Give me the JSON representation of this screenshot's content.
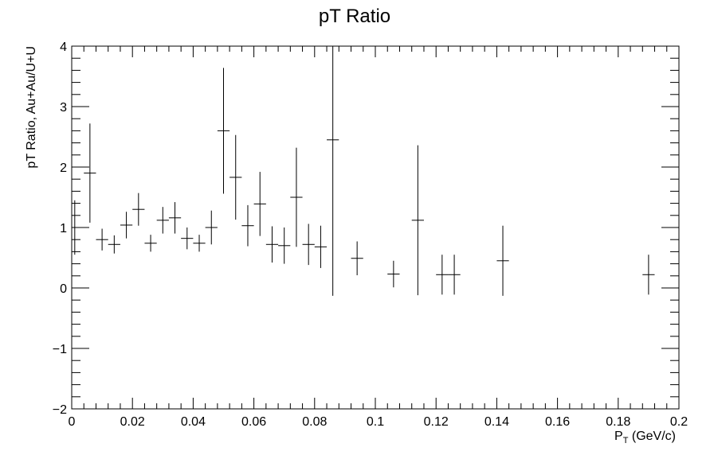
{
  "chart_data": {
    "type": "scatter",
    "title": "pT Ratio",
    "xlabel_main": "P",
    "xlabel_sub": "T",
    "xlabel_rest": " (GeV/c)",
    "ylabel": "pT Ratio, Au+Au/U+U",
    "xlim": [
      0,
      0.2
    ],
    "ylim": [
      -2,
      4
    ],
    "x_ticks": [
      0,
      0.02,
      0.04,
      0.06,
      0.08,
      0.1,
      0.12,
      0.14,
      0.16,
      0.18,
      0.2
    ],
    "x_tick_labels": [
      "0",
      "0.02",
      "0.04",
      "0.06",
      "0.08",
      "0.1",
      "0.12",
      "0.14",
      "0.16",
      "0.18",
      "0.2"
    ],
    "y_ticks": [
      -2,
      -1,
      0,
      1,
      2,
      3,
      4
    ],
    "y_tick_labels": [
      "−2",
      "−1",
      "0",
      "1",
      "2",
      "3",
      "4"
    ],
    "bin_width": 0.004,
    "grid": false,
    "legend": "none",
    "points": [
      {
        "x": 0.001,
        "y": 1.0,
        "err": 0.45
      },
      {
        "x": 0.006,
        "y": 1.9,
        "err": 0.82
      },
      {
        "x": 0.01,
        "y": 0.8,
        "err": 0.18
      },
      {
        "x": 0.014,
        "y": 0.72,
        "err": 0.15
      },
      {
        "x": 0.018,
        "y": 1.04,
        "err": 0.22
      },
      {
        "x": 0.022,
        "y": 1.3,
        "err": 0.27
      },
      {
        "x": 0.026,
        "y": 0.74,
        "err": 0.14
      },
      {
        "x": 0.03,
        "y": 1.12,
        "err": 0.22
      },
      {
        "x": 0.034,
        "y": 1.16,
        "err": 0.26
      },
      {
        "x": 0.038,
        "y": 0.82,
        "err": 0.18
      },
      {
        "x": 0.042,
        "y": 0.74,
        "err": 0.14
      },
      {
        "x": 0.046,
        "y": 1.0,
        "err": 0.28
      },
      {
        "x": 0.05,
        "y": 2.6,
        "err": 1.04
      },
      {
        "x": 0.054,
        "y": 1.83,
        "err": 0.7
      },
      {
        "x": 0.058,
        "y": 1.03,
        "err": 0.34
      },
      {
        "x": 0.062,
        "y": 1.39,
        "err": 0.53
      },
      {
        "x": 0.066,
        "y": 0.72,
        "err": 0.3
      },
      {
        "x": 0.07,
        "y": 0.7,
        "err": 0.3
      },
      {
        "x": 0.074,
        "y": 1.5,
        "err": 0.82
      },
      {
        "x": 0.078,
        "y": 0.72,
        "err": 0.34
      },
      {
        "x": 0.082,
        "y": 0.68,
        "err": 0.35
      },
      {
        "x": 0.086,
        "y": 2.45,
        "err": 2.58
      },
      {
        "x": 0.094,
        "y": 0.49,
        "err": 0.28
      },
      {
        "x": 0.106,
        "y": 0.23,
        "err": 0.22
      },
      {
        "x": 0.114,
        "y": 1.12,
        "err": 1.24
      },
      {
        "x": 0.122,
        "y": 0.22,
        "err": 0.33
      },
      {
        "x": 0.126,
        "y": 0.22,
        "err": 0.33
      },
      {
        "x": 0.142,
        "y": 0.45,
        "err": 0.58
      },
      {
        "x": 0.19,
        "y": 0.22,
        "err": 0.33
      }
    ]
  }
}
